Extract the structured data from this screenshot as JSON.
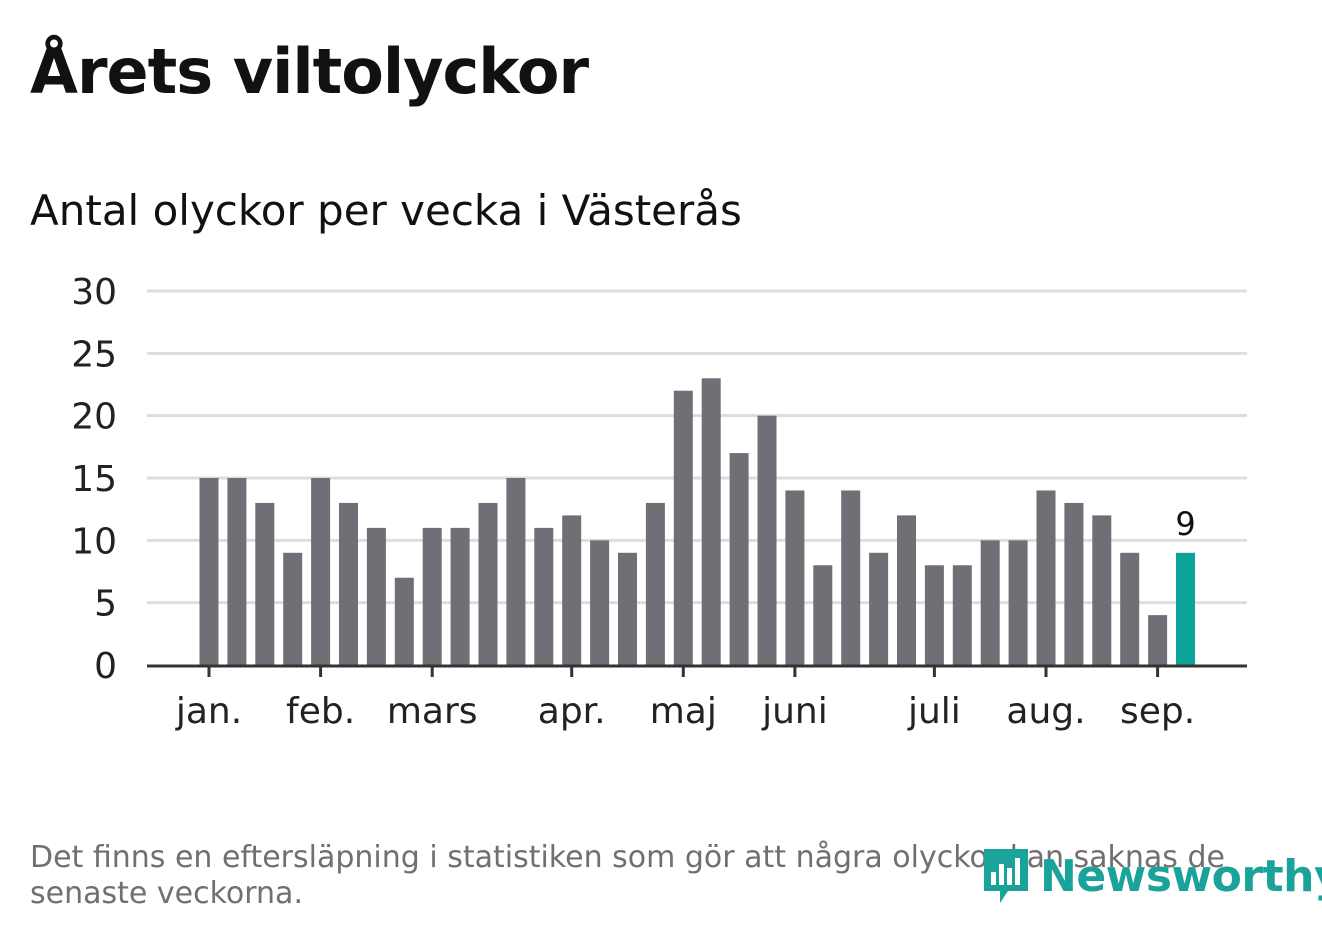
{
  "title": "Årets viltolyckor",
  "subtitle": "Antal olyckor per vecka i Västerås",
  "note": "Det finns en eftersläpning i statistiken som gör att några olyckor kan saknas de senaste veckorna.",
  "brand": {
    "name": "Newsworthy",
    "icon": "bar-chart-speech-bubble-icon",
    "color": "#1aa39a"
  },
  "colors": {
    "bar": "#6f6f75",
    "highlight": "#0ba39a",
    "grid": "#dddddd",
    "axis": "#333333"
  },
  "chart_data": {
    "type": "bar",
    "title": "Antal olyckor per vecka i Västerås",
    "ylim": [
      0,
      30
    ],
    "yticks": [
      0,
      5,
      10,
      15,
      20,
      25,
      30
    ],
    "grid": true,
    "values": [
      15,
      15,
      13,
      9,
      15,
      13,
      11,
      7,
      11,
      11,
      13,
      15,
      11,
      12,
      10,
      9,
      13,
      22,
      23,
      17,
      20,
      14,
      8,
      14,
      9,
      12,
      8,
      8,
      10,
      10,
      14,
      13,
      12,
      9,
      4,
      9
    ],
    "highlight_index": 35,
    "highlight_label": "9",
    "month_labels": [
      {
        "label": "jan.",
        "x": 0
      },
      {
        "label": "feb.",
        "x": 4
      },
      {
        "label": "mars",
        "x": 8
      },
      {
        "label": "apr.",
        "x": 13
      },
      {
        "label": "maj",
        "x": 17
      },
      {
        "label": "juni",
        "x": 21
      },
      {
        "label": "juli",
        "x": 26
      },
      {
        "label": "aug.",
        "x": 30
      },
      {
        "label": "sep.",
        "x": 34
      }
    ]
  }
}
